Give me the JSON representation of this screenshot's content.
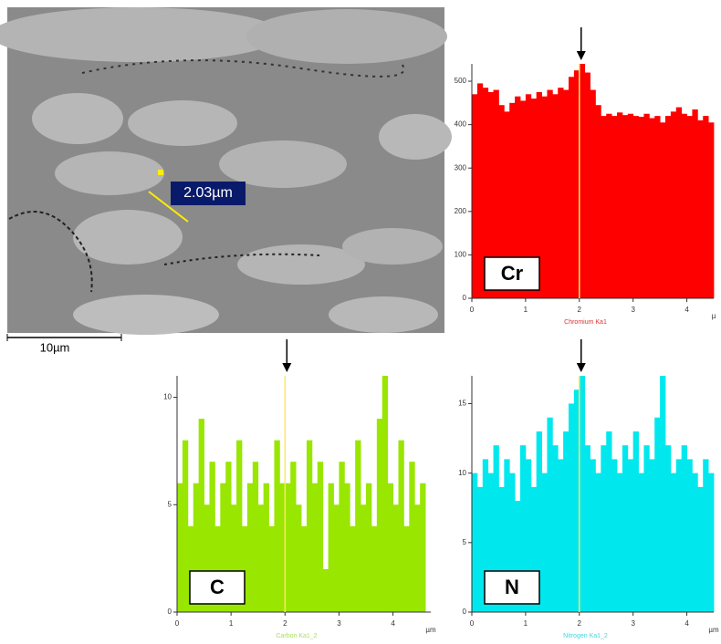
{
  "image": {
    "measurement": "2.03µm",
    "scale_bar": "10µm"
  },
  "chart_data": [
    {
      "type": "step-area",
      "label": "Cr",
      "xlabel": "Chromium Ka1",
      "x_unit": "µ",
      "color": "#ff0000",
      "label_color": "#e03030",
      "x": [
        0,
        0.1,
        0.2,
        0.3,
        0.4,
        0.5,
        0.6,
        0.7,
        0.8,
        0.9,
        1.0,
        1.1,
        1.2,
        1.3,
        1.4,
        1.5,
        1.6,
        1.7,
        1.8,
        1.9,
        2.0,
        2.1,
        2.2,
        2.3,
        2.4,
        2.5,
        2.6,
        2.7,
        2.8,
        2.9,
        3.0,
        3.1,
        3.2,
        3.3,
        3.4,
        3.5,
        3.6,
        3.7,
        3.8,
        3.9,
        4.0,
        4.1,
        4.2,
        4.3,
        4.4
      ],
      "values": [
        470,
        495,
        485,
        475,
        480,
        445,
        430,
        450,
        465,
        455,
        470,
        460,
        475,
        465,
        480,
        470,
        485,
        480,
        510,
        525,
        540,
        520,
        480,
        445,
        420,
        425,
        420,
        428,
        422,
        425,
        420,
        418,
        425,
        415,
        420,
        405,
        420,
        430,
        440,
        425,
        420,
        435,
        410,
        420,
        405
      ],
      "xlim": [
        0,
        4.5
      ],
      "ylim": [
        0,
        540
      ],
      "xticks": [
        0,
        1,
        2,
        3,
        4
      ],
      "yticks": [
        0,
        100,
        200,
        300,
        400,
        500
      ],
      "marker_x": 2
    },
    {
      "type": "step-area",
      "label": "C",
      "xlabel": "Carbon Ka1_2",
      "x_unit": "µm",
      "color": "#99e600",
      "label_color": "#a8e060",
      "x": [
        0,
        0.1,
        0.2,
        0.3,
        0.4,
        0.5,
        0.6,
        0.7,
        0.8,
        0.9,
        1.0,
        1.1,
        1.2,
        1.3,
        1.4,
        1.5,
        1.6,
        1.7,
        1.8,
        1.9,
        2.0,
        2.1,
        2.2,
        2.3,
        2.4,
        2.5,
        2.6,
        2.7,
        2.8,
        2.9,
        3.0,
        3.1,
        3.2,
        3.3,
        3.4,
        3.5,
        3.6,
        3.7,
        3.8,
        3.9,
        4.0,
        4.1,
        4.2,
        4.3,
        4.4,
        4.5
      ],
      "values": [
        6,
        8,
        4,
        6,
        9,
        5,
        7,
        4,
        6,
        7,
        5,
        8,
        4,
        6,
        7,
        5,
        6,
        4,
        8,
        6,
        6,
        7,
        5,
        4,
        8,
        6,
        7,
        2,
        6,
        5,
        7,
        6,
        4,
        8,
        5,
        6,
        4,
        9,
        11,
        6,
        5,
        8,
        4,
        7,
        5,
        6
      ],
      "xlim": [
        0,
        4.7
      ],
      "ylim": [
        0,
        11
      ],
      "xticks": [
        0,
        1,
        2,
        3,
        4
      ],
      "yticks": [
        0,
        5,
        10
      ],
      "marker_x": 2
    },
    {
      "type": "step-area",
      "label": "N",
      "xlabel": "Nitrogen Ka1_2",
      "x_unit": "µm",
      "color": "#00e8ee",
      "label_color": "#40d8e0",
      "x": [
        0,
        0.1,
        0.2,
        0.3,
        0.4,
        0.5,
        0.6,
        0.7,
        0.8,
        0.9,
        1.0,
        1.1,
        1.2,
        1.3,
        1.4,
        1.5,
        1.6,
        1.7,
        1.8,
        1.9,
        2.0,
        2.1,
        2.2,
        2.3,
        2.4,
        2.5,
        2.6,
        2.7,
        2.8,
        2.9,
        3.0,
        3.1,
        3.2,
        3.3,
        3.4,
        3.5,
        3.6,
        3.7,
        3.8,
        3.9,
        4.0,
        4.1,
        4.2,
        4.3,
        4.4
      ],
      "values": [
        10,
        9,
        11,
        10,
        12,
        9,
        11,
        10,
        8,
        12,
        11,
        9,
        13,
        10,
        14,
        12,
        11,
        13,
        15,
        16,
        17,
        12,
        11,
        10,
        12,
        13,
        11,
        10,
        12,
        11,
        13,
        10,
        12,
        11,
        14,
        17,
        12,
        10,
        11,
        12,
        11,
        10,
        9,
        11,
        10
      ],
      "xlim": [
        0,
        4.5
      ],
      "ylim": [
        0,
        17
      ],
      "xticks": [
        0,
        1,
        2,
        3,
        4
      ],
      "yticks": [
        0,
        5,
        10,
        15
      ],
      "marker_x": 2
    }
  ]
}
